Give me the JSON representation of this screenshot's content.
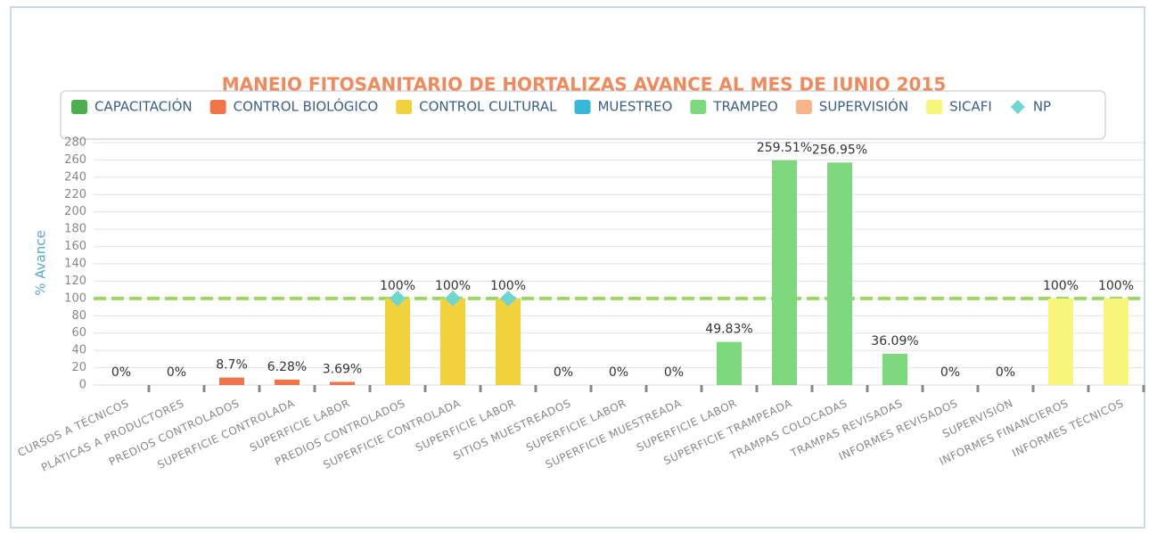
{
  "chart_data": {
    "type": "bar",
    "title": "MANEJO FITOSANITARIO DE HORTALIZAS AVANCE AL MES DE JUNIO 2015",
    "ylabel": "% Avance",
    "categories": [
      "CURSOS A TÉCNICOS",
      "PLÁTICAS A PRODUCTORES",
      "PREDIOS CONTROLADOS",
      "SUPERFICIE CONTROLADA",
      "SUPERFICIE LABOR",
      "PREDIOS CONTROLADOS",
      "SUPERFICIE CONTROLADA",
      "SUPERFICIE LABOR",
      "SITIOS MUESTREADOS",
      "SUPERFICIE LABOR",
      "SUPERFICIE MUESTREADA",
      "SUPERFICIE LABOR",
      "SUPERFICIE TRAMPEADA",
      "TRAMPAS COLOCADAS",
      "TRAMPAS REVISADAS",
      "INFORMES REVISADOS",
      "SUPERVISIÓN",
      "INFORMES FINANCIEROS",
      "INFORMES TÉCNICOS"
    ],
    "series": [
      {
        "name": "CAPACITACIÓN",
        "color": "#4cae4c",
        "values": [
          0,
          0,
          null,
          null,
          null,
          null,
          null,
          null,
          null,
          null,
          null,
          null,
          null,
          null,
          null,
          null,
          null,
          null,
          null
        ],
        "value_labels": [
          "0%",
          "0%",
          null,
          null,
          null,
          null,
          null,
          null,
          null,
          null,
          null,
          null,
          null,
          null,
          null,
          null,
          null,
          null,
          null
        ]
      },
      {
        "name": "CONTROL BIOLÓGICO",
        "color": "#f0764a",
        "values": [
          null,
          null,
          8.7,
          6.28,
          3.69,
          null,
          null,
          null,
          null,
          null,
          null,
          null,
          null,
          null,
          null,
          null,
          null,
          null,
          null
        ],
        "value_labels": [
          null,
          null,
          "8.7%",
          "6.28%",
          "3.69%",
          null,
          null,
          null,
          null,
          null,
          null,
          null,
          null,
          null,
          null,
          null,
          null,
          null,
          null
        ]
      },
      {
        "name": "CONTROL CULTURAL",
        "color": "#f2d23b",
        "values": [
          null,
          null,
          null,
          null,
          null,
          100,
          100,
          100,
          null,
          null,
          null,
          null,
          null,
          null,
          null,
          null,
          null,
          null,
          null
        ],
        "value_labels": [
          null,
          null,
          null,
          null,
          null,
          "100%",
          "100%",
          "100%",
          null,
          null,
          null,
          null,
          null,
          null,
          null,
          null,
          null,
          null,
          null
        ]
      },
      {
        "name": "MUESTREO",
        "color": "#36b9d8",
        "values": [
          null,
          null,
          null,
          null,
          null,
          null,
          null,
          null,
          0,
          0,
          0,
          null,
          null,
          null,
          null,
          null,
          null,
          null,
          null
        ],
        "value_labels": [
          null,
          null,
          null,
          null,
          null,
          null,
          null,
          null,
          "0%",
          "0%",
          "0%",
          null,
          null,
          null,
          null,
          null,
          null,
          null,
          null
        ]
      },
      {
        "name": "TRAMPEO",
        "color": "#7ed87e",
        "values": [
          null,
          null,
          null,
          null,
          null,
          null,
          null,
          null,
          null,
          null,
          null,
          49.83,
          259.51,
          256.95,
          36.09,
          null,
          null,
          null,
          null
        ],
        "value_labels": [
          null,
          null,
          null,
          null,
          null,
          null,
          null,
          null,
          null,
          null,
          null,
          "49.83%",
          "259.51%",
          "256.95%",
          "36.09%",
          null,
          null,
          null,
          null
        ]
      },
      {
        "name": "SUPERVISIÓN",
        "color": "#f7b48a",
        "values": [
          null,
          null,
          null,
          null,
          null,
          null,
          null,
          null,
          null,
          null,
          null,
          null,
          null,
          null,
          null,
          0,
          0,
          null,
          null
        ],
        "value_labels": [
          null,
          null,
          null,
          null,
          null,
          null,
          null,
          null,
          null,
          null,
          null,
          null,
          null,
          null,
          null,
          "0%",
          "0%",
          null,
          null
        ]
      },
      {
        "name": "SICAFI",
        "color": "#f9f47a",
        "values": [
          null,
          null,
          null,
          null,
          null,
          null,
          null,
          null,
          null,
          null,
          null,
          null,
          null,
          null,
          null,
          null,
          null,
          100,
          100
        ],
        "value_labels": [
          null,
          null,
          null,
          null,
          null,
          null,
          null,
          null,
          null,
          null,
          null,
          null,
          null,
          null,
          null,
          null,
          null,
          "100%",
          "100%"
        ]
      },
      {
        "name": "NP",
        "color": "#6fd6cf",
        "marker": "diamond",
        "values": [
          null,
          null,
          null,
          null,
          null,
          100,
          100,
          100,
          null,
          null,
          null,
          null,
          null,
          null,
          null,
          null,
          null,
          null,
          null
        ]
      }
    ],
    "reference_line": 100,
    "ylim": [
      0,
      280
    ],
    "yticks": [
      0,
      20,
      40,
      60,
      80,
      100,
      120,
      140,
      160,
      180,
      200,
      220,
      240,
      260,
      280
    ],
    "grid": true
  }
}
